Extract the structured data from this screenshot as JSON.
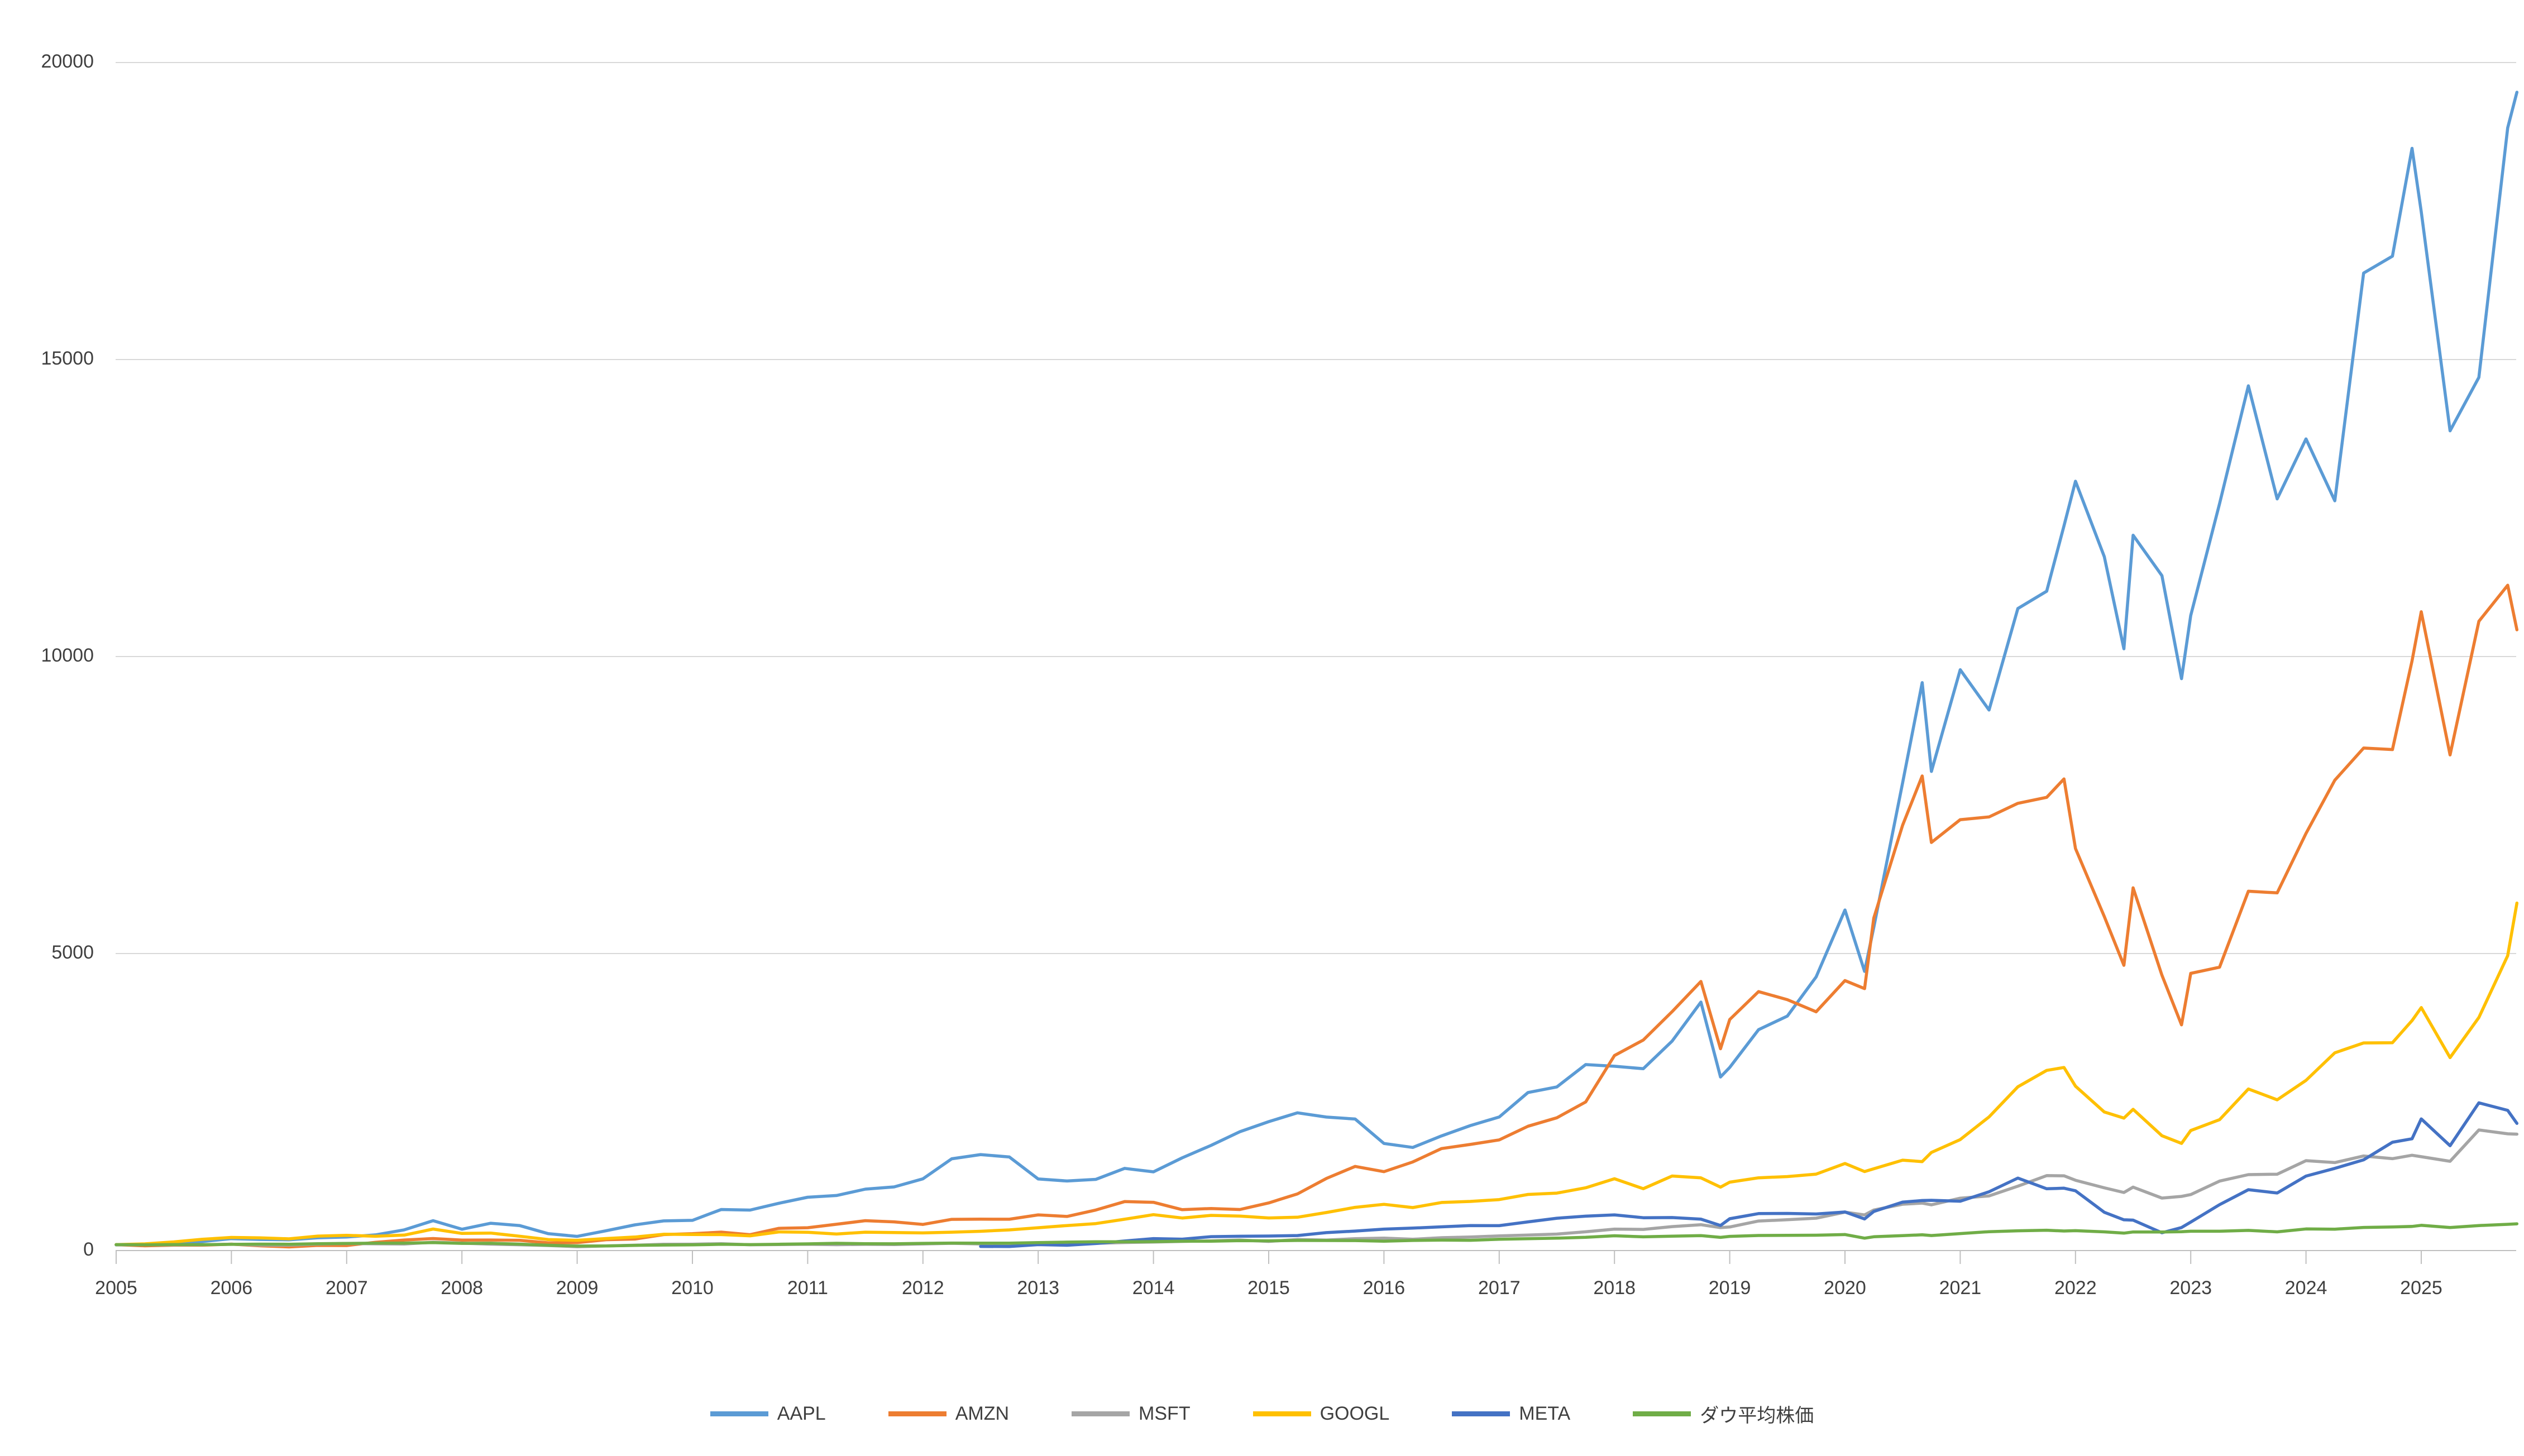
{
  "chart_data": {
    "type": "line",
    "title": "",
    "xlabel": "",
    "ylabel": "",
    "grid": "horizontal",
    "legend_position": "bottom-center",
    "background_color": "#ffffff",
    "gridline_color": "#d9d9d9",
    "axis_line_color": "#bfbfbf",
    "axis_text_color": "#3f3f3f",
    "ylim": [
      0,
      20000
    ],
    "xlim": [
      2005,
      2025.9
    ],
    "yticks": [
      0,
      5000,
      10000,
      15000,
      20000
    ],
    "xticks": [
      2005,
      2006,
      2007,
      2008,
      2009,
      2010,
      2011,
      2012,
      2013,
      2014,
      2015,
      2016,
      2017,
      2018,
      2019,
      2020,
      2021,
      2022,
      2023,
      2024,
      2025
    ],
    "x": [
      2005.0,
      2005.25,
      2005.5,
      2005.75,
      2006.0,
      2006.25,
      2006.5,
      2006.75,
      2007.0,
      2007.25,
      2007.5,
      2007.75,
      2008.0,
      2008.25,
      2008.5,
      2008.75,
      2009.0,
      2009.25,
      2009.5,
      2009.75,
      2010.0,
      2010.25,
      2010.5,
      2010.75,
      2011.0,
      2011.25,
      2011.5,
      2011.75,
      2012.0,
      2012.25,
      2012.5,
      2012.75,
      2013.0,
      2013.25,
      2013.5,
      2013.75,
      2014.0,
      2014.25,
      2014.5,
      2014.75,
      2015.0,
      2015.25,
      2015.5,
      2015.75,
      2016.0,
      2016.25,
      2016.5,
      2016.75,
      2017.0,
      2017.25,
      2017.5,
      2017.75,
      2018.0,
      2018.25,
      2018.5,
      2018.75,
      2018.92,
      2019.0,
      2019.25,
      2019.5,
      2019.75,
      2020.0,
      2020.17,
      2020.25,
      2020.5,
      2020.67,
      2020.75,
      2021.0,
      2021.25,
      2021.5,
      2021.75,
      2021.9,
      2022.0,
      2022.25,
      2022.42,
      2022.5,
      2022.75,
      2022.92,
      2023.0,
      2023.25,
      2023.5,
      2023.75,
      2024.0,
      2024.25,
      2024.5,
      2024.75,
      2024.92,
      2025.0,
      2025.25,
      2025.5,
      2025.75,
      2025.83
    ],
    "series": [
      {
        "name": "AAPL",
        "color": "#5B9BD5",
        "values": [
          95,
          96,
          113,
          153,
          200,
          187,
          180,
          215,
          227,
          264,
          349,
          503,
          359,
          460,
          421,
          284,
          239,
          333,
          432,
          499,
          508,
          691,
          681,
          796,
          898,
          927,
          1034,
          1071,
          1208,
          1545,
          1616,
          1575,
          1205,
          1171,
          1198,
          1383,
          1325,
          1561,
          1771,
          2001,
          2170,
          2319,
          2247,
          2214,
          1803,
          1736,
          1930,
          2104,
          2248,
          2661,
          2755,
          3131,
          3102,
          3061,
          3525,
          4182,
          2922,
          3083,
          3718,
          3947,
          4608,
          5733,
          4700,
          5442,
          7873,
          9560,
          8066,
          9778,
          9100,
          10808,
          11100,
          12200,
          12951,
          11681,
          10131,
          12042,
          11362,
          9628,
          10692,
          12573,
          14557,
          12654,
          13664,
          12622,
          16456,
          16740,
          18555,
          17488,
          13800,
          14700,
          18900,
          19500
        ]
      },
      {
        "name": "AMZN",
        "color": "#ED7D31",
        "values": [
          100,
          80,
          90,
          90,
          108,
          80,
          61,
          86,
          85,
          139,
          178,
          202,
          176,
          178,
          173,
          130,
          133,
          182,
          194,
          269,
          284,
          310,
          267,
          374,
          384,
          443,
          503,
          483,
          440,
          525,
          528,
          527,
          601,
          574,
          682,
          824,
          812,
          688,
          708,
          691,
          802,
          954,
          1213,
          1416,
          1328,
          1492,
          1717,
          1787,
          1863,
          2093,
          2235,
          2501,
          3283,
          3544,
          4022,
          4530,
          3398,
          3889,
          4359,
          4224,
          4020,
          4545,
          4410,
          5598,
          7160,
          7990,
          6870,
          7254,
          7300,
          7529,
          7630,
          7940,
          6768,
          5623,
          4802,
          6106,
          4635,
          3800,
          4666,
          4771,
          6049,
          6022,
          7023,
          7918,
          8460,
          8434,
          9927,
          10754,
          8344,
          10593,
          11200,
          10450
        ]
      },
      {
        "name": "MSFT",
        "color": "#A5A5A5",
        "values": [
          100,
          96,
          97,
          98,
          107,
          92,
          91,
          109,
          118,
          114,
          110,
          140,
          124,
          108,
          98,
          85,
          65,
          77,
          90,
          106,
          107,
          116,
          98,
          101,
          106,
          99,
          104,
          101,
          112,
          122,
          112,
          109,
          105,
          126,
          121,
          135,
          144,
          154,
          164,
          178,
          154,
          185,
          177,
          200,
          210,
          190,
          216,
          228,
          246,
          260,
          277,
          316,
          361,
          356,
          403,
          435,
          386,
          397,
          497,
          519,
          545,
          647,
          600,
          682,
          780,
          799,
          770,
          882,
          920,
          1084,
          1261,
          1258,
          1183,
          1056,
          977,
          1068,
          883,
          912,
          943,
          1169,
          1278,
          1286,
          1513,
          1481,
          1592,
          1547,
          1604,
          1580,
          1503,
          2030,
          1965,
          1960
        ]
      },
      {
        "name": "GOOGL",
        "color": "#FFC000",
        "values": [
          100,
          113,
          146,
          190,
          221,
          214,
          197,
          243,
          257,
          241,
          260,
          362,
          289,
          294,
          242,
          184,
          173,
          202,
          227,
          274,
          271,
          269,
          248,
          314,
          307,
          278,
          309,
          303,
          297,
          309,
          324,
          348,
          384,
          421,
          454,
          527,
          604,
          548,
          592,
          580,
          549,
          561,
          640,
          727,
          778,
          724,
          809,
          827,
          858,
          945,
          967,
          1056,
          1209,
          1041,
          1255,
          1224,
          1068,
          1151,
          1225,
          1245,
          1287,
          1465,
          1330,
          1377,
          1522,
          1497,
          1652,
          1868,
          2250,
          2757,
          3033,
          3082,
          2767,
          2333,
          2229,
          2378,
          1933,
          1804,
          2021,
          2203,
          2720,
          2538,
          2865,
          3329,
          3495,
          3499,
          3871,
          4090,
          3248,
          3924,
          4964,
          5850
        ]
      },
      {
        "name": "META",
        "color": "#4472C4",
        "values": [
          null,
          null,
          null,
          null,
          null,
          null,
          null,
          null,
          null,
          null,
          null,
          null,
          null,
          null,
          null,
          null,
          null,
          null,
          null,
          null,
          null,
          null,
          null,
          null,
          null,
          null,
          null,
          null,
          null,
          null,
          70,
          68,
          100,
          89,
          118,
          161,
          201,
          192,
          234,
          241,
          244,
          253,
          302,
          328,
          361,
          378,
          399,
          421,
          419,
          483,
          544,
          579,
          601,
          553,
          555,
          529,
          422,
          536,
          622,
          625,
          616,
          649,
          532,
          658,
          816,
          842,
          846,
          831,
          990,
          1220,
          1040,
          1050,
          1007,
          645,
          518,
          512,
          300,
          387,
          479,
          773,
          1024,
          969,
          1254,
          1383,
          1527,
          1823,
          1882,
          2216,
          1765,
          2487,
          2360,
          2141
        ]
      },
      {
        "name": "ダウ平均株価",
        "color": "#70AD47",
        "values": [
          100,
          97,
          101,
          100,
          104,
          108,
          106,
          115,
          120,
          124,
          126,
          133,
          121,
          123,
          108,
          89,
          76,
          78,
          87,
          93,
          96,
          105,
          100,
          106,
          113,
          122,
          116,
          114,
          121,
          126,
          125,
          125,
          133,
          142,
          148,
          148,
          150,
          158,
          157,
          166,
          164,
          170,
          169,
          168,
          157,
          170,
          176,
          173,
          190,
          200,
          209,
          223,
          249,
          231,
          242,
          252,
          222,
          239,
          254,
          256,
          258,
          270,
          209,
          232,
          252,
          265,
          253,
          286,
          318,
          333,
          342,
          329,
          335,
          315,
          293,
          313,
          313,
          317,
          325,
          325,
          339,
          315,
          364,
          360,
          389,
          398,
          406,
          425,
          388,
          421,
          442,
          450
        ]
      }
    ]
  }
}
